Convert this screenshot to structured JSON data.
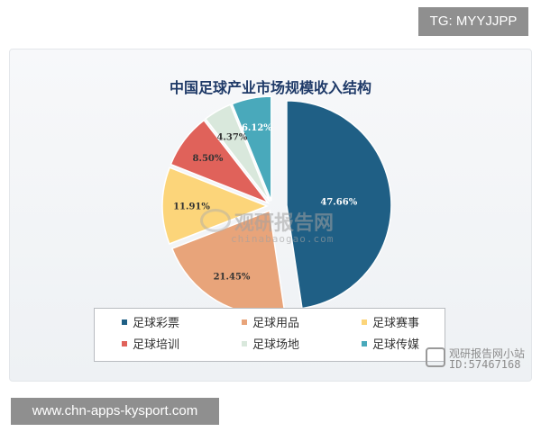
{
  "badges": {
    "top_right": "TG: MYYJJPP",
    "bottom_left": "www.chn-apps-kysport.com"
  },
  "watermarks": {
    "center_main": "观研报告网",
    "center_sub": "chinabaogao.com",
    "corner_line1": "观研报告网小站",
    "corner_line2": "ID:57467168"
  },
  "chart_data": {
    "type": "pie",
    "title": "中国足球产业市场规模收入结构",
    "exploded": true,
    "categories": [
      "足球彩票",
      "足球用品",
      "足球赛事",
      "足球培训",
      "足球场地",
      "足球传媒"
    ],
    "values": [
      47.66,
      21.45,
      11.91,
      8.5,
      4.37,
      6.12
    ],
    "labels": [
      "47.66%",
      "21.45%",
      "11.91%",
      "8.50%",
      "4.37%",
      "6.12%"
    ],
    "colors": [
      "#1f5f85",
      "#e8a47a",
      "#fcd57a",
      "#e0625a",
      "#d9e8dc",
      "#49a9bb"
    ],
    "legend_position": "bottom"
  }
}
